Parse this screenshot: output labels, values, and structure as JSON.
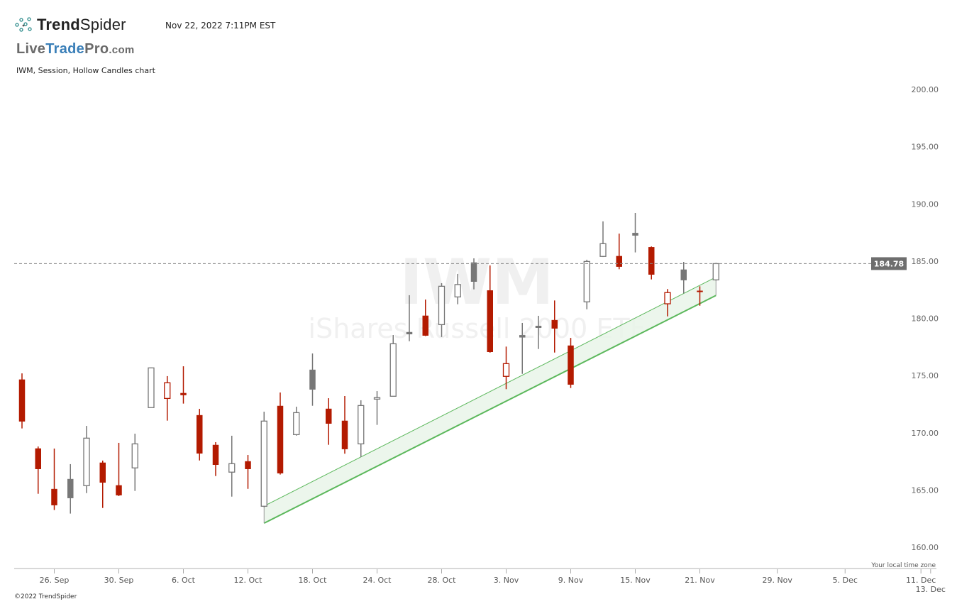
{
  "header": {
    "brand_bold": "Trend",
    "brand_light": "Spider",
    "timestamp": "Nov 22, 2022 7:11PM EST",
    "watermark_logo": "LiveTradePro.com",
    "subtitle": "IWM, Session, Hollow Candles chart"
  },
  "footer": {
    "copyright": "©2022 TrendSpider"
  },
  "colors": {
    "down": "#b31a00",
    "up": "#777777",
    "channel_line": "#5cb85c",
    "channel_fill": "#e9f5e9",
    "watermark": "#f0f0f0"
  },
  "chart_data": {
    "type": "candlestick",
    "style": "hollow",
    "symbol_watermark": "IWM",
    "name_watermark": "iShares Russell 2000 ETF",
    "last_price_label": "184.78",
    "timezone_note": "Your local time zone",
    "ylim": [
      160,
      200
    ],
    "y_ticks": [
      "160.00",
      "165.00",
      "170.00",
      "175.00",
      "180.00",
      "185.00",
      "190.00",
      "195.00",
      "200.00"
    ],
    "x_ticks": [
      {
        "label": "26. Sep",
        "day": 2
      },
      {
        "label": "30. Sep",
        "day": 6
      },
      {
        "label": "6. Oct",
        "day": 10
      },
      {
        "label": "12. Oct",
        "day": 14
      },
      {
        "label": "18. Oct",
        "day": 18
      },
      {
        "label": "24. Oct",
        "day": 22
      },
      {
        "label": "28. Oct",
        "day": 26
      },
      {
        "label": "3. Nov",
        "day": 30
      },
      {
        "label": "9. Nov",
        "day": 34
      },
      {
        "label": "15. Nov",
        "day": 38
      },
      {
        "label": "21. Nov",
        "day": 42
      },
      {
        "label": "29. Nov",
        "day": 46.8
      },
      {
        "label": "5. Dec",
        "day": 51
      },
      {
        "label": "11. Dec",
        "day": 55.7
      },
      {
        "label": "13. Dec",
        "day": 56.3
      }
    ],
    "candles": [
      [
        "2022-09-22",
        174.64,
        175.19,
        170.38,
        171.0
      ],
      [
        "2022-09-23",
        168.62,
        168.8,
        164.67,
        166.84
      ],
      [
        "2022-09-26",
        165.08,
        168.62,
        163.25,
        163.68
      ],
      [
        "2022-09-27",
        165.95,
        167.26,
        162.94,
        164.3
      ],
      [
        "2022-09-28",
        165.38,
        170.6,
        164.73,
        169.53
      ],
      [
        "2022-09-29",
        167.38,
        167.57,
        163.43,
        165.66
      ],
      [
        "2022-09-30",
        165.4,
        169.12,
        164.47,
        164.55
      ],
      [
        "2022-10-03",
        166.93,
        169.92,
        164.92,
        169.03
      ],
      [
        "2022-10-04",
        172.2,
        175.7,
        172.2,
        175.67
      ],
      [
        "2022-10-05",
        173.0,
        174.95,
        171.06,
        174.37
      ],
      [
        "2022-10-06",
        173.46,
        175.81,
        172.55,
        173.3
      ],
      [
        "2022-10-07",
        171.53,
        172.09,
        167.58,
        168.2
      ],
      [
        "2022-10-10",
        168.93,
        169.18,
        166.22,
        167.21
      ],
      [
        "2022-10-11",
        166.56,
        169.74,
        164.42,
        167.3
      ],
      [
        "2022-10-12",
        167.5,
        168.06,
        165.1,
        166.84
      ],
      [
        "2022-10-13",
        163.58,
        171.84,
        163.5,
        171.02
      ],
      [
        "2022-10-14",
        172.34,
        173.52,
        166.35,
        166.47
      ],
      [
        "2022-10-17",
        169.84,
        172.28,
        169.75,
        171.76
      ],
      [
        "2022-10-18",
        175.5,
        176.93,
        172.36,
        173.79
      ],
      [
        "2022-10-19",
        172.09,
        173.02,
        168.95,
        170.81
      ],
      [
        "2022-10-20",
        171.04,
        173.21,
        168.17,
        168.58
      ],
      [
        "2022-10-21",
        169.03,
        172.84,
        167.88,
        172.38
      ],
      [
        "2022-10-24",
        172.94,
        173.64,
        170.69,
        173.07
      ],
      [
        "2022-10-25",
        173.19,
        178.54,
        173.19,
        177.78
      ],
      [
        "2022-10-26",
        178.79,
        182.02,
        178.0,
        178.62
      ],
      [
        "2022-10-27",
        180.22,
        181.64,
        178.45,
        178.5
      ],
      [
        "2022-10-28",
        179.45,
        183.07,
        178.37,
        182.8
      ],
      [
        "2022-10-31",
        181.87,
        183.88,
        181.23,
        182.95
      ],
      [
        "2022-11-01",
        184.87,
        185.24,
        182.53,
        183.21
      ],
      [
        "2022-11-02",
        182.43,
        184.62,
        177.0,
        177.07
      ],
      [
        "2022-11-03",
        174.93,
        177.53,
        173.81,
        176.04
      ],
      [
        "2022-11-04",
        178.52,
        179.6,
        175.15,
        178.34
      ],
      [
        "2022-11-07",
        179.33,
        180.22,
        177.32,
        179.18
      ],
      [
        "2022-11-08",
        179.84,
        181.56,
        177.01,
        179.12
      ],
      [
        "2022-11-09",
        177.61,
        178.29,
        173.91,
        174.22
      ],
      [
        "2022-11-10",
        181.44,
        185.12,
        180.79,
        184.97
      ],
      [
        "2022-11-11",
        185.41,
        188.47,
        185.36,
        186.52
      ],
      [
        "2022-11-14",
        185.43,
        187.4,
        184.29,
        184.52
      ],
      [
        "2022-11-15",
        187.45,
        189.21,
        185.76,
        187.24
      ],
      [
        "2022-11-16",
        186.21,
        186.28,
        183.4,
        183.83
      ],
      [
        "2022-11-17",
        181.27,
        182.56,
        180.17,
        182.25
      ],
      [
        "2022-11-18",
        184.25,
        184.93,
        182.18,
        183.34
      ],
      [
        "2022-11-21",
        182.4,
        182.8,
        181.1,
        182.38
      ],
      [
        "2022-11-22",
        183.36,
        184.85,
        183.3,
        184.78
      ]
    ],
    "channel": {
      "start": "2022-10-13",
      "end": "2022-11-22",
      "upper": [
        163.6,
        183.6
      ],
      "lower": [
        162.1,
        182.0
      ]
    }
  }
}
